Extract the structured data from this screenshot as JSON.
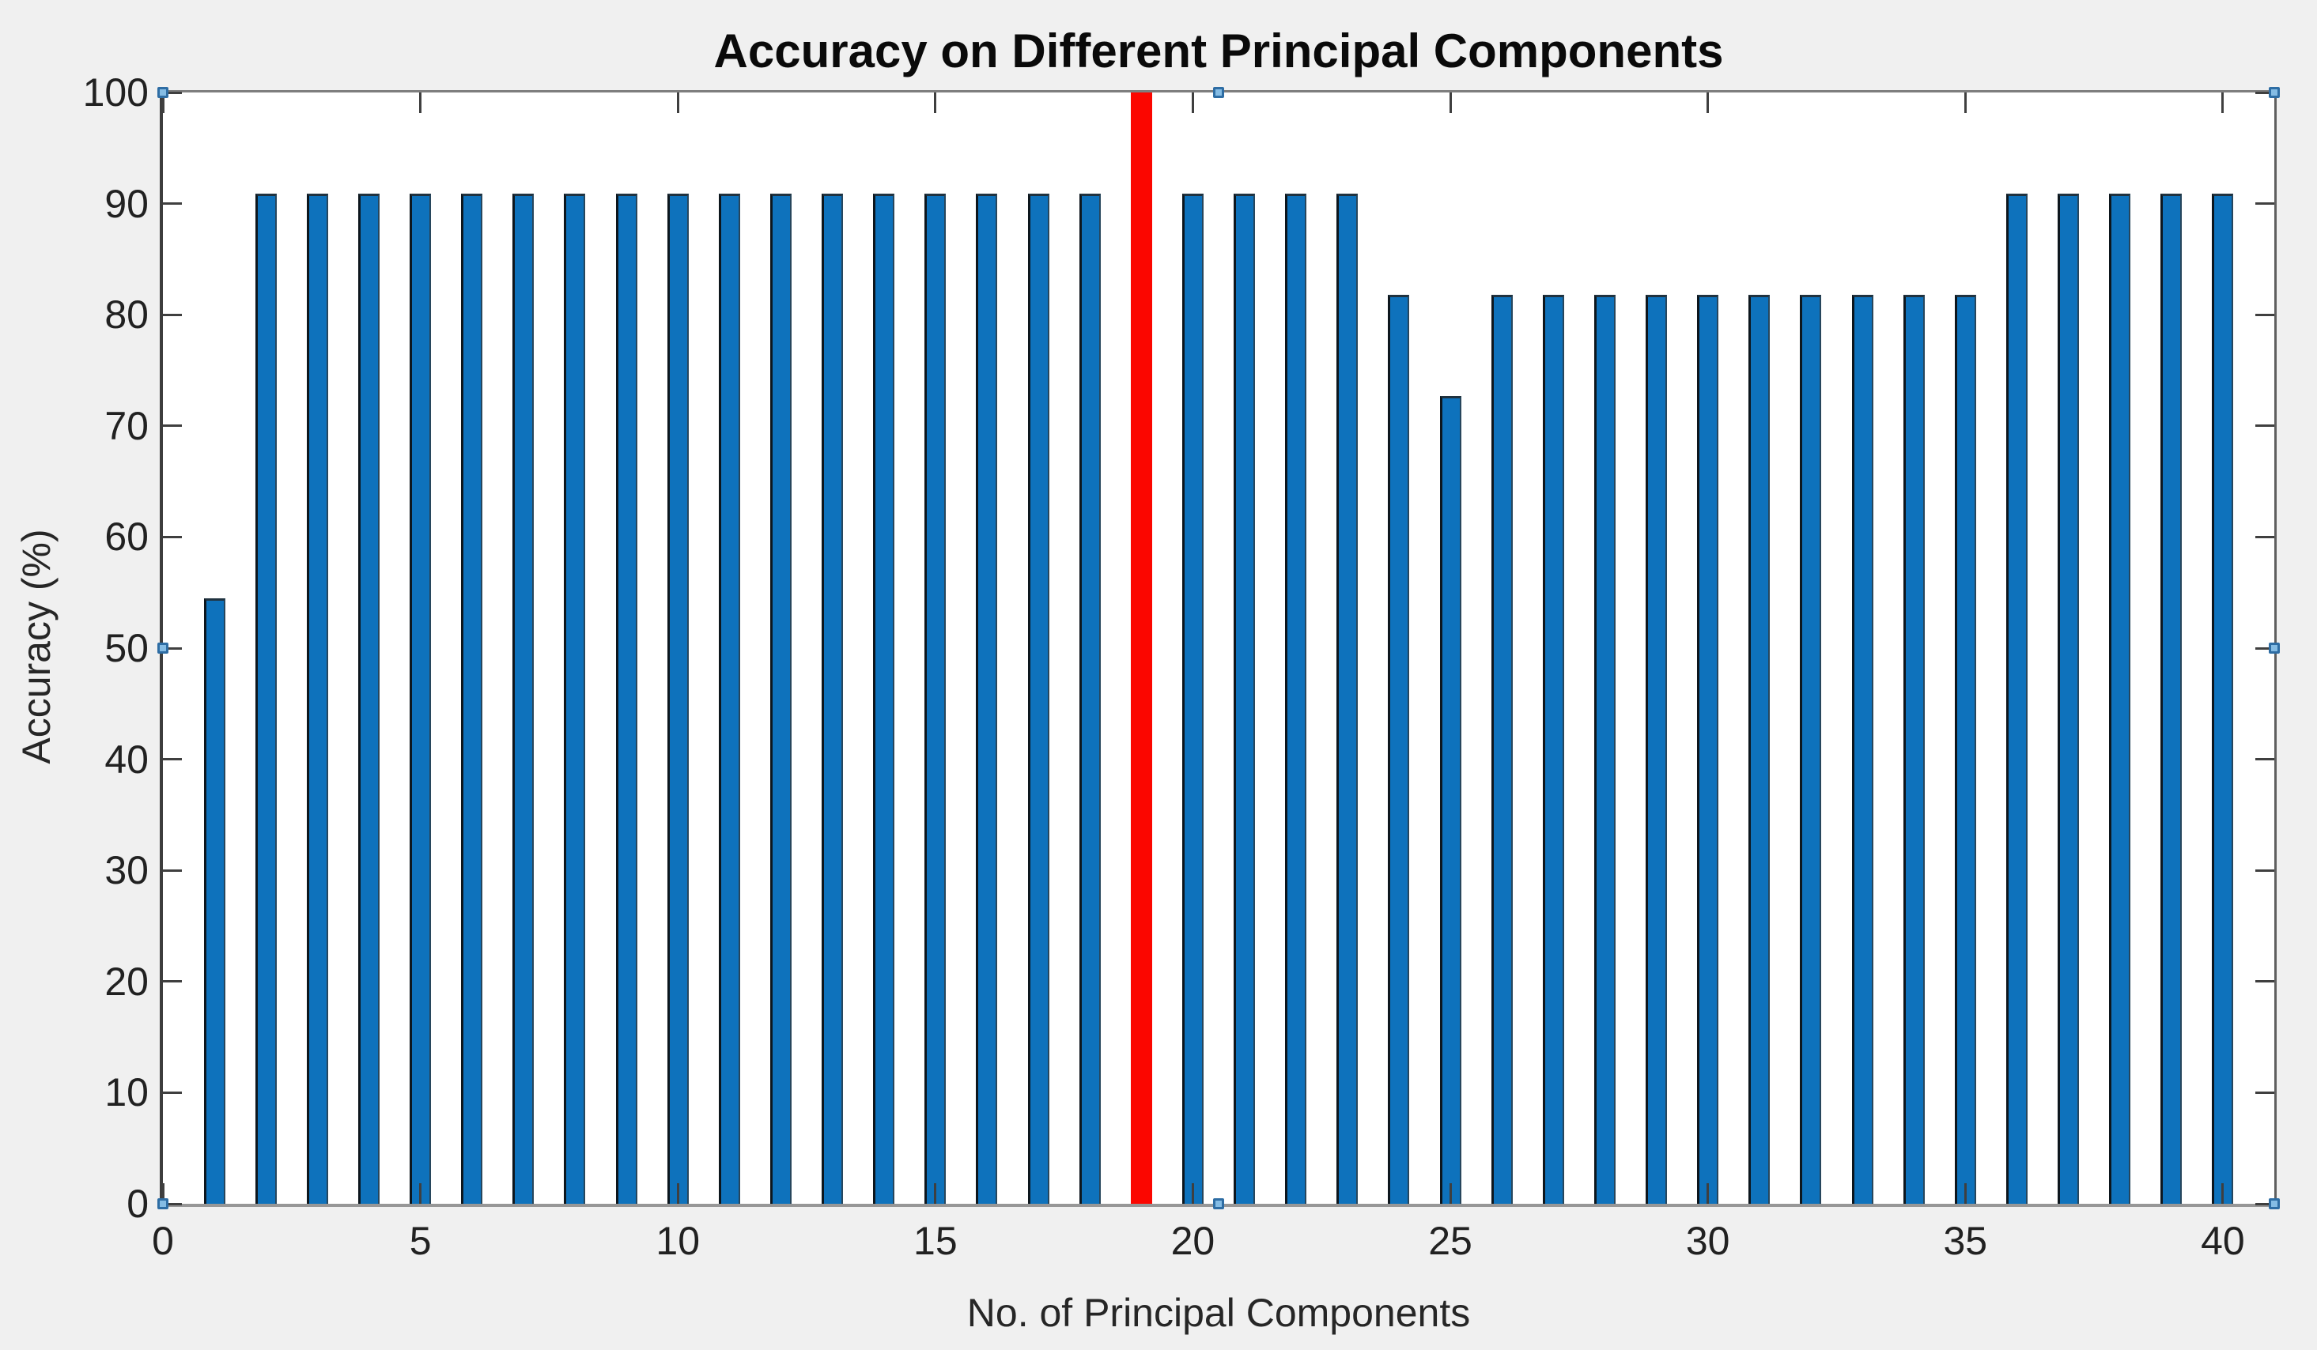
{
  "title": "Accuracy on Different Principal Components",
  "axes": {
    "xlabel": "No. of Principal Components",
    "ylabel": "Accuracy (%)",
    "x_tick_labels": [
      "0",
      "5",
      "10",
      "15",
      "20",
      "25",
      "30",
      "35",
      "40"
    ],
    "y_tick_labels": [
      "0",
      "10",
      "20",
      "30",
      "40",
      "50",
      "60",
      "70",
      "80",
      "90",
      "100"
    ]
  },
  "chart_data": {
    "type": "bar",
    "title": "Accuracy on Different Principal Components",
    "xlabel": "No. of Principal Components",
    "ylabel": "Accuracy (%)",
    "xlim": [
      0,
      41
    ],
    "ylim": [
      0,
      100
    ],
    "x_ticks": [
      0,
      5,
      10,
      15,
      20,
      25,
      30,
      35,
      40
    ],
    "y_ticks": [
      0,
      10,
      20,
      30,
      40,
      50,
      60,
      70,
      80,
      90,
      100
    ],
    "grid": false,
    "legend": null,
    "x": [
      1,
      2,
      3,
      4,
      5,
      6,
      7,
      8,
      9,
      10,
      11,
      12,
      13,
      14,
      15,
      16,
      17,
      18,
      19,
      20,
      21,
      22,
      23,
      24,
      25,
      26,
      27,
      28,
      29,
      30,
      31,
      32,
      33,
      34,
      35,
      36,
      37,
      38,
      39,
      40
    ],
    "values": [
      54.5,
      90.9,
      90.9,
      90.9,
      90.9,
      90.9,
      90.9,
      90.9,
      90.9,
      90.9,
      90.9,
      90.9,
      90.9,
      90.9,
      90.9,
      90.9,
      90.9,
      90.9,
      100,
      90.9,
      90.9,
      90.9,
      90.9,
      81.8,
      72.7,
      81.8,
      81.8,
      81.8,
      81.8,
      81.8,
      81.8,
      81.8,
      81.8,
      81.8,
      81.8,
      90.9,
      90.9,
      90.9,
      90.9,
      90.9
    ],
    "bar_color": "#0e72bc",
    "highlight_x": 19,
    "highlight_color": "#fb0600",
    "bar_width_units": 0.4
  },
  "colors": {
    "figure_background": "#f0f0f0",
    "plot_background": "#ffffff",
    "axis_box": "#5f5f5f",
    "tick_text": "#212121",
    "selection_handle": "#85bce4"
  },
  "plot_edit_mode": {
    "axes_selected": true,
    "handle_positions": [
      "top-left",
      "top-middle",
      "top-right",
      "middle-left",
      "middle-right",
      "bottom-left",
      "bottom-middle",
      "bottom-right"
    ]
  }
}
